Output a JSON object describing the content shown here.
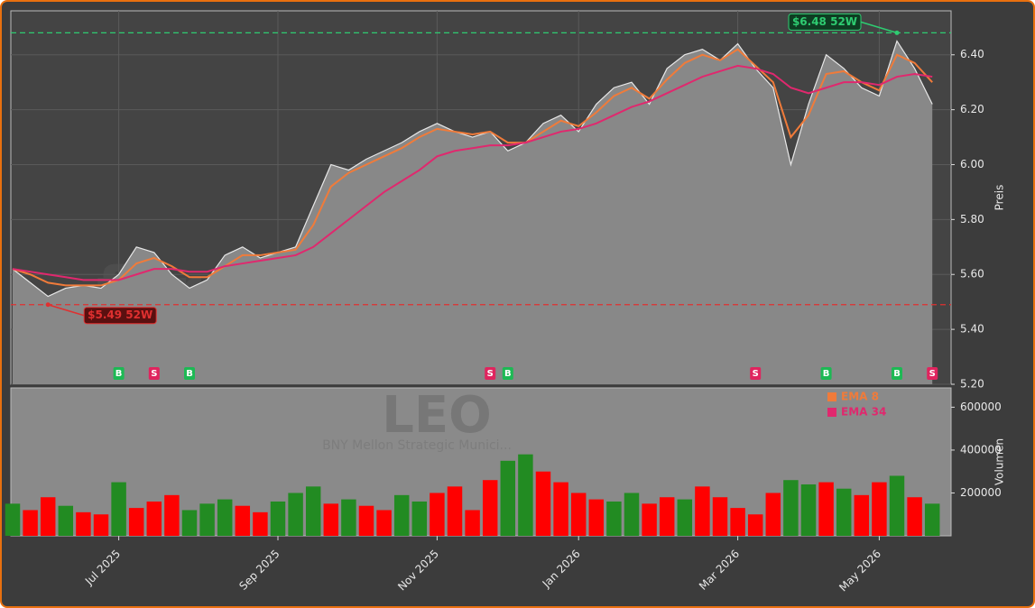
{
  "chart_data": [
    {
      "type": "price",
      "categories": [
        null,
        null,
        null,
        null,
        null,
        null,
        "Jul 2025",
        null,
        null,
        null,
        null,
        null,
        null,
        null,
        null,
        "Sep 2025",
        null,
        null,
        null,
        null,
        null,
        null,
        null,
        null,
        "Nov 2025",
        null,
        null,
        null,
        null,
        null,
        null,
        null,
        "Jan 2026",
        null,
        null,
        null,
        null,
        null,
        null,
        null,
        null,
        "Mar 2026",
        null,
        null,
        null,
        null,
        null,
        null,
        null,
        "May 2026",
        null,
        null,
        null
      ],
      "series": [
        {
          "name": "Close",
          "color": "#e8e8e8",
          "values": [
            5.62,
            5.57,
            5.52,
            5.55,
            5.56,
            5.55,
            5.6,
            5.7,
            5.68,
            5.6,
            5.55,
            5.58,
            5.67,
            5.7,
            5.66,
            5.68,
            5.7,
            5.85,
            6.0,
            5.98,
            6.02,
            6.05,
            6.08,
            6.12,
            6.15,
            6.12,
            6.1,
            6.12,
            6.05,
            6.08,
            6.15,
            6.18,
            6.12,
            6.22,
            6.28,
            6.3,
            6.22,
            6.35,
            6.4,
            6.42,
            6.38,
            6.44,
            6.35,
            6.28,
            6.0,
            6.22,
            6.4,
            6.35,
            6.28,
            6.25,
            6.45,
            6.35,
            6.22
          ]
        },
        {
          "name": "EMA 8",
          "color": "#f07b3a",
          "values": [
            5.62,
            5.6,
            5.57,
            5.56,
            5.56,
            5.56,
            5.58,
            5.64,
            5.66,
            5.63,
            5.59,
            5.59,
            5.63,
            5.67,
            5.67,
            5.68,
            5.69,
            5.78,
            5.92,
            5.97,
            6.0,
            6.03,
            6.06,
            6.1,
            6.13,
            6.12,
            6.11,
            6.12,
            6.08,
            6.08,
            6.12,
            6.16,
            6.14,
            6.19,
            6.25,
            6.28,
            6.24,
            6.31,
            6.37,
            6.4,
            6.38,
            6.42,
            6.36,
            6.3,
            6.1,
            6.18,
            6.33,
            6.34,
            6.3,
            6.27,
            6.4,
            6.37,
            6.3
          ]
        },
        {
          "name": "EMA 34",
          "color": "#e0286e",
          "values": [
            5.62,
            5.61,
            5.6,
            5.59,
            5.58,
            5.58,
            5.58,
            5.6,
            5.62,
            5.62,
            5.61,
            5.61,
            5.63,
            5.64,
            5.65,
            5.66,
            5.67,
            5.7,
            5.75,
            5.8,
            5.85,
            5.9,
            5.94,
            5.98,
            6.03,
            6.05,
            6.06,
            6.07,
            6.07,
            6.08,
            6.1,
            6.12,
            6.13,
            6.15,
            6.18,
            6.21,
            6.23,
            6.26,
            6.29,
            6.32,
            6.34,
            6.36,
            6.35,
            6.33,
            6.28,
            6.26,
            6.28,
            6.3,
            6.3,
            6.29,
            6.32,
            6.33,
            6.32
          ]
        }
      ],
      "ylim": [
        5.2,
        6.56
      ],
      "yticks": [
        {
          "value": 5.2,
          "label": "5.20"
        },
        {
          "value": 5.4,
          "label": "5.40"
        },
        {
          "value": 5.6,
          "label": "5.60"
        },
        {
          "value": 5.8,
          "label": "5.80"
        },
        {
          "value": 6.0,
          "label": "6.00"
        },
        {
          "value": 6.2,
          "label": "6.20"
        },
        {
          "value": 6.4,
          "label": "6.40"
        }
      ],
      "ylabel": "Preis",
      "grid": true,
      "levels": [
        {
          "value": 6.48,
          "label": "$6.48 52W",
          "color": "#2ecc71",
          "at": 50
        },
        {
          "value": 5.49,
          "label": "$5.49 52W",
          "color": "#e03030",
          "at": 2
        }
      ],
      "signals": [
        {
          "label": "B",
          "at": 6
        },
        {
          "label": "S",
          "at": 8
        },
        {
          "label": "B",
          "at": 10
        },
        {
          "label": "S",
          "at": 27
        },
        {
          "label": "B",
          "at": 28
        },
        {
          "label": "S",
          "at": 42
        },
        {
          "label": "B",
          "at": 46
        },
        {
          "label": "B",
          "at": 50
        },
        {
          "label": "S",
          "at": 52
        }
      ],
      "watermark": "forexsignale.trade",
      "symbol": "LEO",
      "company": "BNY Mellon Strategic Munici..."
    },
    {
      "type": "volume",
      "values": [
        150000,
        120000,
        180000,
        140000,
        110000,
        100000,
        250000,
        130000,
        160000,
        190000,
        120000,
        150000,
        170000,
        140000,
        110000,
        160000,
        200000,
        230000,
        150000,
        170000,
        140000,
        120000,
        190000,
        160000,
        200000,
        230000,
        120000,
        260000,
        350000,
        380000,
        300000,
        250000,
        200000,
        170000,
        160000,
        200000,
        150000,
        180000,
        170000,
        230000,
        180000,
        130000,
        100000,
        200000,
        260000,
        240000,
        250000,
        220000,
        190000,
        250000,
        280000,
        180000,
        150000
      ],
      "colors": [
        "#228b22",
        "#ff0000",
        "#ff0000",
        "#228b22",
        "#ff0000",
        "#ff0000",
        "#228b22",
        "#ff0000",
        "#ff0000",
        "#ff0000",
        "#228b22",
        "#228b22",
        "#228b22",
        "#ff0000",
        "#ff0000",
        "#228b22",
        "#228b22",
        "#228b22",
        "#ff0000",
        "#228b22",
        "#ff0000",
        "#ff0000",
        "#228b22",
        "#228b22",
        "#ff0000",
        "#ff0000",
        "#ff0000",
        "#ff0000",
        "#228b22",
        "#228b22",
        "#ff0000",
        "#ff0000",
        "#ff0000",
        "#ff0000",
        "#228b22",
        "#228b22",
        "#ff0000",
        "#ff0000",
        "#228b22",
        "#ff0000",
        "#ff0000",
        "#ff0000",
        "#ff0000",
        "#ff0000",
        "#228b22",
        "#228b22",
        "#ff0000",
        "#228b22",
        "#ff0000",
        "#ff0000",
        "#228b22",
        "#ff0000",
        "#228b22"
      ],
      "ylim": [
        0,
        690000
      ],
      "yticks": [
        200000,
        400000,
        600000
      ],
      "ylabel": "Volumen",
      "legend": [
        {
          "name": "EMA 8",
          "color": "#f07b3a"
        },
        {
          "name": "EMA 34",
          "color": "#e0286e"
        }
      ],
      "legend_position": "upper right"
    }
  ]
}
